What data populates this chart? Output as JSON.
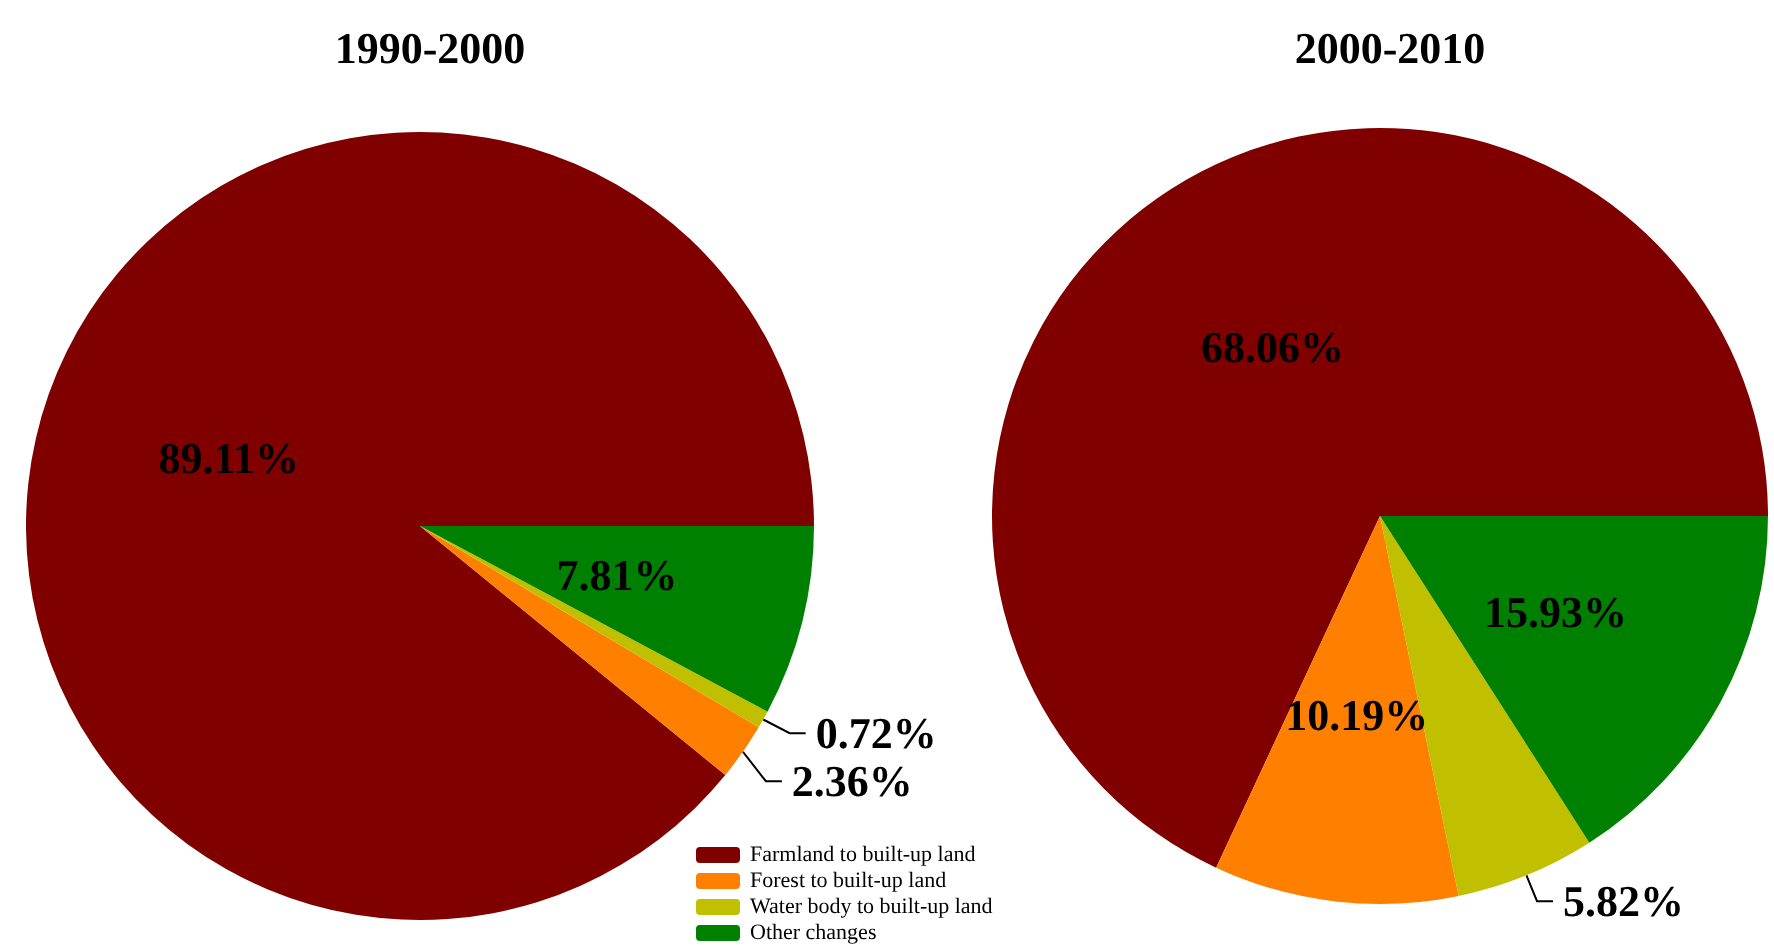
{
  "chart_data": [
    {
      "type": "pie",
      "title": "1990-2000",
      "categories": [
        "Farmland to built-up land",
        "Forest to built-up land",
        "Water body to built-up land",
        "Other changes"
      ],
      "values": [
        89.11,
        2.36,
        0.72,
        7.81
      ],
      "value_labels": [
        "89.11%",
        "2.36%",
        "0.72%",
        "7.81%"
      ],
      "colors": [
        "#800000",
        "#ff8000",
        "#c0c000",
        "#008000"
      ],
      "legend": "bottom right"
    },
    {
      "type": "pie",
      "title": "2000-2010",
      "categories": [
        null,
        null,
        null,
        null
      ],
      "values": [
        68.06,
        10.19,
        5.82,
        15.93
      ],
      "value_labels": [
        "68.06%",
        "10.19%",
        "5.82%",
        "15.93%"
      ],
      "colors": [
        "#800000",
        "#ff8000",
        "#c0c000",
        "#008000"
      ]
    }
  ]
}
